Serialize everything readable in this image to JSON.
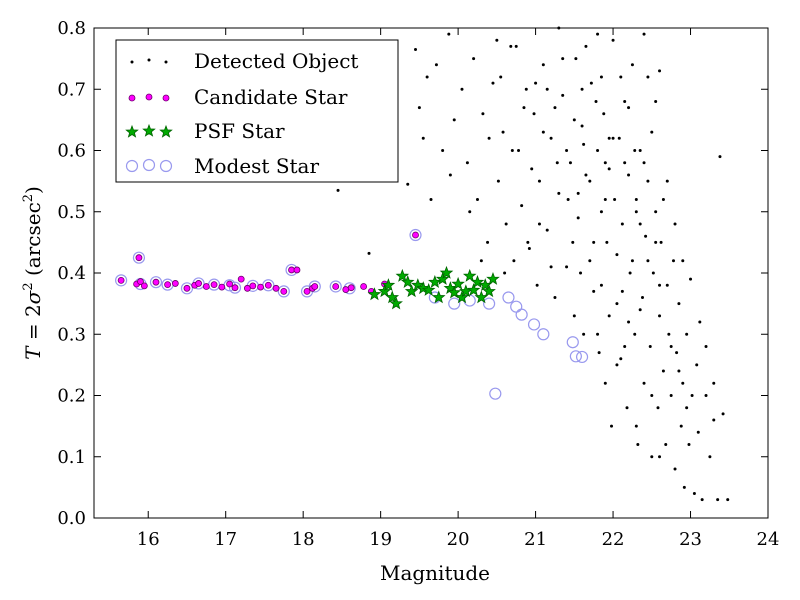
{
  "chart_data": {
    "type": "scatter",
    "xlabel": "Magnitude",
    "ylabel_T": "T",
    "ylabel_eq": " = 2",
    "ylabel_sigma": "σ",
    "ylabel_sup2": "2",
    "ylabel_open": " (arcsec",
    "ylabel_close": ")",
    "xlim": [
      15.3,
      24.0
    ],
    "ylim": [
      0.0,
      0.8
    ],
    "xticks": [
      "16",
      "17",
      "18",
      "19",
      "20",
      "21",
      "22",
      "23",
      "24"
    ],
    "yticks": [
      "0.0",
      "0.1",
      "0.2",
      "0.3",
      "0.4",
      "0.5",
      "0.6",
      "0.7",
      "0.8"
    ],
    "grid": false,
    "legend_position": "top-left",
    "colors": {
      "detected": "#000000",
      "candidate_fill": "#ff00ff",
      "psf_fill": "#00aa00",
      "psf_edge": "#006400",
      "modest_edge": "#9999ee"
    },
    "series": [
      {
        "name": "Detected Object",
        "marker": "dot",
        "points": [
          [
            18.45,
            0.535
          ],
          [
            18.85,
            0.432
          ],
          [
            19.35,
            0.545
          ],
          [
            19.45,
            0.765
          ],
          [
            19.55,
            0.62
          ],
          [
            19.6,
            0.72
          ],
          [
            19.72,
            0.74
          ],
          [
            19.8,
            0.6
          ],
          [
            19.88,
            0.79
          ],
          [
            19.95,
            0.65
          ],
          [
            20.05,
            0.7
          ],
          [
            20.12,
            0.58
          ],
          [
            20.2,
            0.75
          ],
          [
            20.25,
            0.52
          ],
          [
            20.32,
            0.66
          ],
          [
            20.38,
            0.45
          ],
          [
            20.45,
            0.71
          ],
          [
            20.52,
            0.55
          ],
          [
            20.58,
            0.63
          ],
          [
            20.62,
            0.48
          ],
          [
            20.68,
            0.77
          ],
          [
            20.72,
            0.42
          ],
          [
            20.78,
            0.6
          ],
          [
            20.82,
            0.51
          ],
          [
            20.88,
            0.7
          ],
          [
            20.92,
            0.44
          ],
          [
            20.98,
            0.66
          ],
          [
            21.02,
            0.38
          ],
          [
            21.05,
            0.55
          ],
          [
            21.1,
            0.74
          ],
          [
            21.15,
            0.47
          ],
          [
            21.2,
            0.62
          ],
          [
            21.25,
            0.36
          ],
          [
            21.3,
            0.53
          ],
          [
            21.35,
            0.69
          ],
          [
            21.4,
            0.41
          ],
          [
            21.45,
            0.58
          ],
          [
            21.5,
            0.33
          ],
          [
            21.52,
            0.75
          ],
          [
            21.55,
            0.49
          ],
          [
            21.6,
            0.64
          ],
          [
            21.62,
            0.3
          ],
          [
            21.65,
            0.56
          ],
          [
            21.7,
            0.42
          ],
          [
            21.72,
            0.71
          ],
          [
            21.75,
            0.37
          ],
          [
            21.8,
            0.6
          ],
          [
            21.82,
            0.27
          ],
          [
            21.85,
            0.5
          ],
          [
            21.88,
            0.66
          ],
          [
            21.9,
            0.22
          ],
          [
            21.92,
            0.45
          ],
          [
            21.95,
            0.57
          ],
          [
            21.98,
            0.15
          ],
          [
            22.0,
            0.78
          ],
          [
            22.02,
            0.52
          ],
          [
            22.05,
            0.35
          ],
          [
            22.08,
            0.62
          ],
          [
            22.1,
            0.26
          ],
          [
            22.12,
            0.48
          ],
          [
            22.15,
            0.68
          ],
          [
            22.18,
            0.18
          ],
          [
            22.2,
            0.56
          ],
          [
            22.22,
            0.4
          ],
          [
            22.25,
            0.74
          ],
          [
            22.28,
            0.3
          ],
          [
            22.3,
            0.5
          ],
          [
            22.32,
            0.12
          ],
          [
            22.35,
            0.6
          ],
          [
            22.38,
            0.36
          ],
          [
            22.4,
            0.22
          ],
          [
            22.42,
            0.46
          ],
          [
            22.45,
            0.55
          ],
          [
            22.48,
            0.28
          ],
          [
            22.5,
            0.1
          ],
          [
            22.52,
            0.4
          ],
          [
            22.55,
            0.5
          ],
          [
            22.58,
            0.18
          ],
          [
            22.6,
            0.33
          ],
          [
            22.62,
            0.45
          ],
          [
            22.65,
            0.24
          ],
          [
            22.68,
            0.12
          ],
          [
            22.7,
            0.38
          ],
          [
            22.72,
            0.3
          ],
          [
            22.75,
            0.2
          ],
          [
            22.78,
            0.42
          ],
          [
            22.8,
            0.08
          ],
          [
            22.82,
            0.27
          ],
          [
            22.85,
            0.35
          ],
          [
            22.88,
            0.15
          ],
          [
            22.9,
            0.22
          ],
          [
            22.92,
            0.05
          ],
          [
            22.95,
            0.3
          ],
          [
            22.98,
            0.12
          ],
          [
            23.02,
            0.2
          ],
          [
            23.05,
            0.04
          ],
          [
            23.08,
            0.25
          ],
          [
            23.1,
            0.14
          ],
          [
            23.15,
            0.03
          ],
          [
            23.2,
            0.2
          ],
          [
            23.25,
            0.1
          ],
          [
            23.3,
            0.16
          ],
          [
            23.35,
            0.03
          ],
          [
            23.38,
            0.59
          ],
          [
            23.42,
            0.17
          ],
          [
            23.48,
            0.03
          ],
          [
            21.3,
            0.8
          ],
          [
            21.8,
            0.79
          ],
          [
            22.4,
            0.79
          ],
          [
            21.6,
            0.7
          ],
          [
            22.6,
            0.73
          ],
          [
            21.95,
            0.62
          ],
          [
            22.3,
            0.52
          ],
          [
            21.75,
            0.45
          ],
          [
            22.5,
            0.63
          ],
          [
            21.4,
            0.6
          ],
          [
            22.15,
            0.58
          ],
          [
            21.05,
            0.48
          ],
          [
            22.7,
            0.55
          ],
          [
            20.95,
            0.57
          ],
          [
            21.55,
            0.53
          ],
          [
            22.05,
            0.43
          ],
          [
            21.2,
            0.41
          ],
          [
            22.35,
            0.34
          ],
          [
            22.8,
            0.48
          ],
          [
            21.85,
            0.38
          ],
          [
            21.1,
            0.63
          ],
          [
            20.85,
            0.67
          ],
          [
            20.6,
            0.4
          ],
          [
            20.4,
            0.62
          ],
          [
            20.15,
            0.5
          ],
          [
            19.9,
            0.56
          ],
          [
            19.65,
            0.52
          ],
          [
            20.75,
            0.77
          ],
          [
            21.65,
            0.77
          ],
          [
            22.1,
            0.72
          ],
          [
            22.55,
            0.68
          ],
          [
            21.35,
            0.75
          ],
          [
            20.5,
            0.78
          ],
          [
            19.5,
            0.67
          ],
          [
            20.3,
            0.42
          ],
          [
            22.9,
            0.42
          ],
          [
            23.0,
            0.39
          ],
          [
            23.12,
            0.32
          ],
          [
            22.65,
            0.52
          ],
          [
            22.25,
            0.42
          ],
          [
            21.9,
            0.52
          ],
          [
            21.48,
            0.45
          ],
          [
            21.28,
            0.58
          ],
          [
            21.78,
            0.68
          ],
          [
            22.45,
            0.42
          ],
          [
            22.2,
            0.32
          ],
          [
            21.7,
            0.55
          ],
          [
            22.0,
            0.62
          ],
          [
            22.28,
            0.6
          ],
          [
            21.58,
            0.4
          ],
          [
            20.9,
            0.45
          ],
          [
            21.0,
            0.71
          ],
          [
            22.6,
            0.38
          ],
          [
            22.75,
            0.28
          ],
          [
            22.05,
            0.25
          ],
          [
            22.35,
            0.48
          ],
          [
            21.95,
            0.33
          ],
          [
            21.42,
            0.52
          ],
          [
            21.62,
            0.61
          ],
          [
            22.12,
            0.37
          ],
          [
            22.4,
            0.58
          ],
          [
            22.85,
            0.24
          ],
          [
            23.2,
            0.28
          ],
          [
            23.3,
            0.22
          ],
          [
            22.95,
            0.18
          ],
          [
            22.5,
            0.2
          ],
          [
            22.15,
            0.28
          ],
          [
            21.8,
            0.3
          ],
          [
            22.3,
            0.15
          ],
          [
            22.6,
            0.1
          ],
          [
            21.5,
            0.65
          ],
          [
            21.85,
            0.72
          ],
          [
            22.2,
            0.67
          ],
          [
            22.45,
            0.72
          ],
          [
            21.15,
            0.7
          ],
          [
            20.7,
            0.6
          ],
          [
            20.55,
            0.72
          ],
          [
            21.25,
            0.67
          ],
          [
            21.9,
            0.58
          ],
          [
            22.55,
            0.45
          ]
        ]
      },
      {
        "name": "Candidate Star",
        "marker": "small-circle",
        "points": [
          [
            15.65,
            0.388
          ],
          [
            15.85,
            0.382
          ],
          [
            15.9,
            0.386
          ],
          [
            15.95,
            0.379
          ],
          [
            16.1,
            0.385
          ],
          [
            16.25,
            0.381
          ],
          [
            16.35,
            0.383
          ],
          [
            16.5,
            0.375
          ],
          [
            16.6,
            0.38
          ],
          [
            16.65,
            0.383
          ],
          [
            16.75,
            0.378
          ],
          [
            16.85,
            0.381
          ],
          [
            16.95,
            0.377
          ],
          [
            17.05,
            0.382
          ],
          [
            17.12,
            0.376
          ],
          [
            17.2,
            0.39
          ],
          [
            17.28,
            0.375
          ],
          [
            17.35,
            0.379
          ],
          [
            17.45,
            0.377
          ],
          [
            17.55,
            0.38
          ],
          [
            17.65,
            0.375
          ],
          [
            17.75,
            0.37
          ],
          [
            17.85,
            0.405
          ],
          [
            17.92,
            0.405
          ],
          [
            18.05,
            0.37
          ],
          [
            18.12,
            0.375
          ],
          [
            18.15,
            0.378
          ],
          [
            18.42,
            0.378
          ],
          [
            18.55,
            0.373
          ],
          [
            18.62,
            0.376
          ],
          [
            18.78,
            0.378
          ],
          [
            18.88,
            0.37
          ],
          [
            19.05,
            0.382
          ],
          [
            15.88,
            0.425
          ],
          [
            19.45,
            0.462
          ]
        ]
      },
      {
        "name": "PSF Star",
        "marker": "star",
        "points": [
          [
            18.92,
            0.365
          ],
          [
            19.05,
            0.37
          ],
          [
            19.1,
            0.38
          ],
          [
            19.15,
            0.36
          ],
          [
            19.2,
            0.35
          ],
          [
            19.28,
            0.395
          ],
          [
            19.35,
            0.385
          ],
          [
            19.4,
            0.37
          ],
          [
            19.48,
            0.38
          ],
          [
            19.55,
            0.375
          ],
          [
            19.62,
            0.372
          ],
          [
            19.7,
            0.385
          ],
          [
            19.75,
            0.36
          ],
          [
            19.8,
            0.39
          ],
          [
            19.85,
            0.4
          ],
          [
            19.9,
            0.375
          ],
          [
            19.95,
            0.368
          ],
          [
            20.0,
            0.382
          ],
          [
            20.05,
            0.36
          ],
          [
            20.1,
            0.37
          ],
          [
            20.15,
            0.395
          ],
          [
            20.2,
            0.372
          ],
          [
            20.25,
            0.385
          ],
          [
            20.3,
            0.36
          ],
          [
            20.35,
            0.38
          ],
          [
            20.4,
            0.37
          ],
          [
            20.45,
            0.39
          ]
        ]
      },
      {
        "name": "Modest Star",
        "marker": "open-circle",
        "points": [
          [
            15.65,
            0.388
          ],
          [
            15.88,
            0.425
          ],
          [
            15.9,
            0.382
          ],
          [
            16.1,
            0.385
          ],
          [
            16.25,
            0.381
          ],
          [
            16.5,
            0.375
          ],
          [
            16.65,
            0.383
          ],
          [
            16.85,
            0.381
          ],
          [
            17.05,
            0.38
          ],
          [
            17.12,
            0.376
          ],
          [
            17.35,
            0.379
          ],
          [
            17.55,
            0.38
          ],
          [
            17.75,
            0.37
          ],
          [
            17.85,
            0.405
          ],
          [
            18.05,
            0.37
          ],
          [
            18.15,
            0.378
          ],
          [
            18.42,
            0.378
          ],
          [
            18.6,
            0.375
          ],
          [
            19.45,
            0.462
          ],
          [
            19.7,
            0.36
          ],
          [
            19.95,
            0.35
          ],
          [
            20.15,
            0.355
          ],
          [
            20.4,
            0.35
          ],
          [
            20.65,
            0.36
          ],
          [
            20.75,
            0.345
          ],
          [
            20.82,
            0.332
          ],
          [
            20.98,
            0.316
          ],
          [
            21.1,
            0.3
          ],
          [
            21.48,
            0.287
          ],
          [
            21.52,
            0.264
          ],
          [
            21.6,
            0.263
          ],
          [
            20.48,
            0.203
          ]
        ]
      }
    ]
  }
}
